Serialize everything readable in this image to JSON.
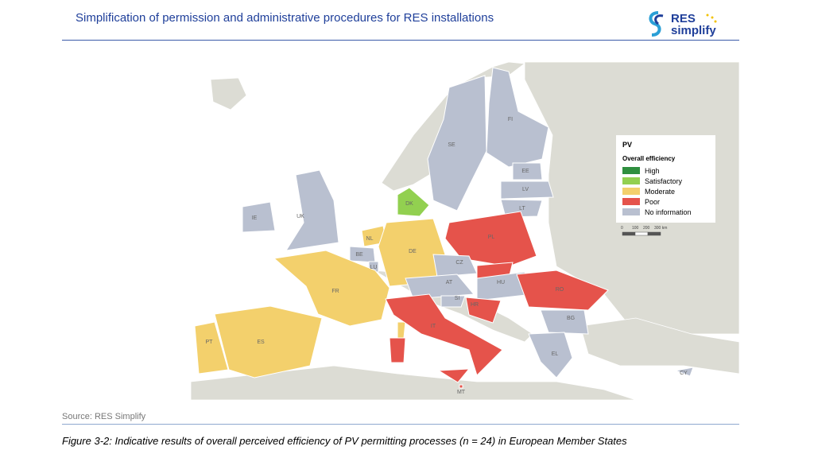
{
  "header": {
    "title": "Simplification of permission and administrative procedures for RES installations",
    "logo_top": "RES",
    "logo_bottom": "simplify"
  },
  "legend": {
    "title": "PV",
    "subtitle": "Overall efficiency",
    "items": [
      {
        "label": "High",
        "color": "#2f8f3f"
      },
      {
        "label": "Satisfactory",
        "color": "#92d050"
      },
      {
        "label": "Moderate",
        "color": "#f3d06c"
      },
      {
        "label": "Poor",
        "color": "#e5534b"
      },
      {
        "label": "No information",
        "color": "#b9c0d0"
      }
    ],
    "scale": [
      "0",
      "100",
      "200",
      "300 km"
    ]
  },
  "countries": [
    {
      "code": "FI",
      "rating": "No information"
    },
    {
      "code": "SE",
      "rating": "No information"
    },
    {
      "code": "EE",
      "rating": "No information"
    },
    {
      "code": "LV",
      "rating": "No information"
    },
    {
      "code": "LT",
      "rating": "No information"
    },
    {
      "code": "DK",
      "rating": "Satisfactory"
    },
    {
      "code": "IE",
      "rating": "No information"
    },
    {
      "code": "UK",
      "rating": "No information"
    },
    {
      "code": "NL",
      "rating": "Moderate"
    },
    {
      "code": "BE",
      "rating": "No information"
    },
    {
      "code": "LU",
      "rating": "No information"
    },
    {
      "code": "DE",
      "rating": "Moderate"
    },
    {
      "code": "PL",
      "rating": "Poor"
    },
    {
      "code": "CZ",
      "rating": "No information"
    },
    {
      "code": null,
      "rating": "Poor"
    },
    {
      "code": "AT",
      "rating": "No information"
    },
    {
      "code": "HU",
      "rating": "No information"
    },
    {
      "code": "SI",
      "rating": "No information"
    },
    {
      "code": "HR",
      "rating": "Poor"
    },
    {
      "code": "RO",
      "rating": "Poor"
    },
    {
      "code": "BG",
      "rating": "No information"
    },
    {
      "code": "EL",
      "rating": "No information"
    },
    {
      "code": "FR",
      "rating": "Moderate"
    },
    {
      "code": "ES",
      "rating": "Moderate"
    },
    {
      "code": "PT",
      "rating": "Moderate"
    },
    {
      "code": "IT",
      "rating": "Poor"
    },
    {
      "code": "CY",
      "rating": "No information"
    },
    {
      "code": "MT",
      "rating": "Poor"
    }
  ],
  "source": "Source: RES Simplify",
  "caption": {
    "label": "Figure 3-2",
    "text": ": Indicative results of overall perceived efficiency of PV permitting processes (n = 24) in European Member States"
  }
}
